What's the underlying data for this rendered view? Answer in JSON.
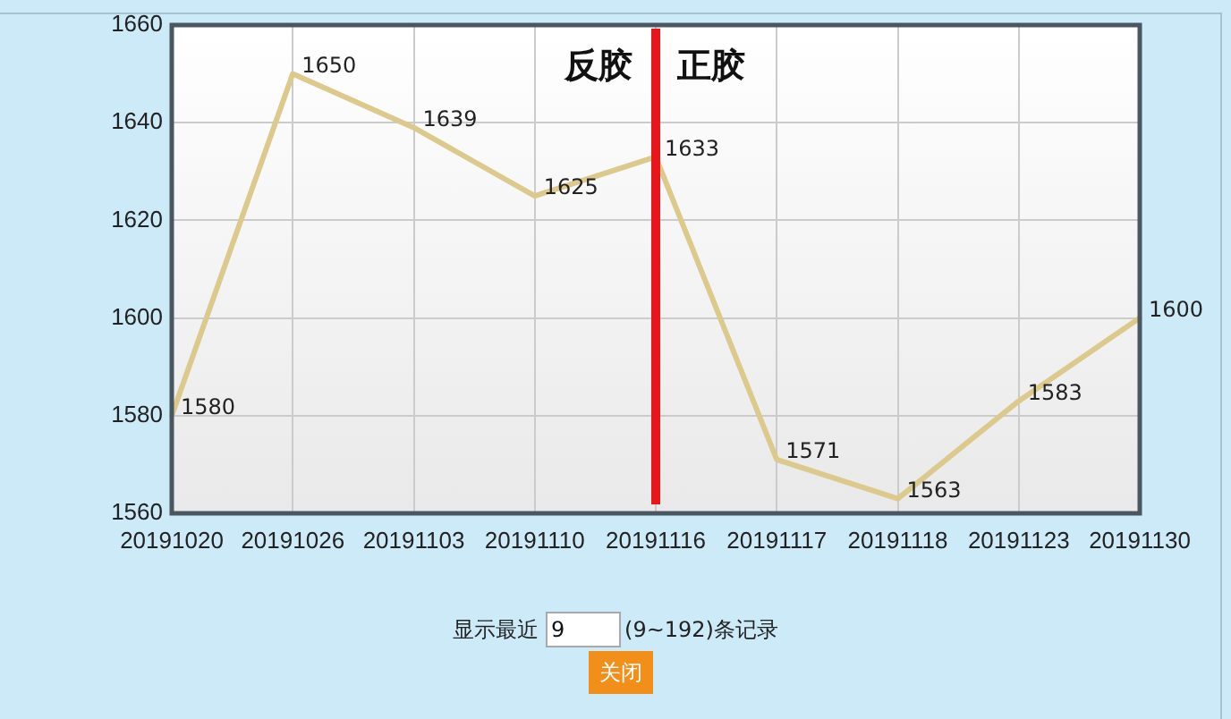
{
  "chart_data": {
    "type": "line",
    "categories": [
      "20191020",
      "20191026",
      "20191103",
      "20191110",
      "20191116",
      "20191117",
      "20191118",
      "20191123",
      "20191130"
    ],
    "series": [
      {
        "color": "#dcc98c",
        "values": [
          1580,
          1650,
          1639,
          1625,
          1633,
          1571,
          1563,
          1583,
          1600
        ]
      }
    ],
    "ylim": [
      1560,
      1660
    ],
    "yticks": [
      1560,
      1580,
      1600,
      1620,
      1640,
      1660
    ],
    "grid": true,
    "legend": false,
    "marker": "none",
    "line_style": "solid",
    "data_labels": true,
    "ref_lines": [
      {
        "axis": "x",
        "value": "20191116",
        "color": "#e8151b"
      }
    ],
    "annotations": [
      "反胶",
      "正胶",
      "显示最近",
      "9",
      "(9~192)条记录",
      "关闭"
    ]
  }
}
